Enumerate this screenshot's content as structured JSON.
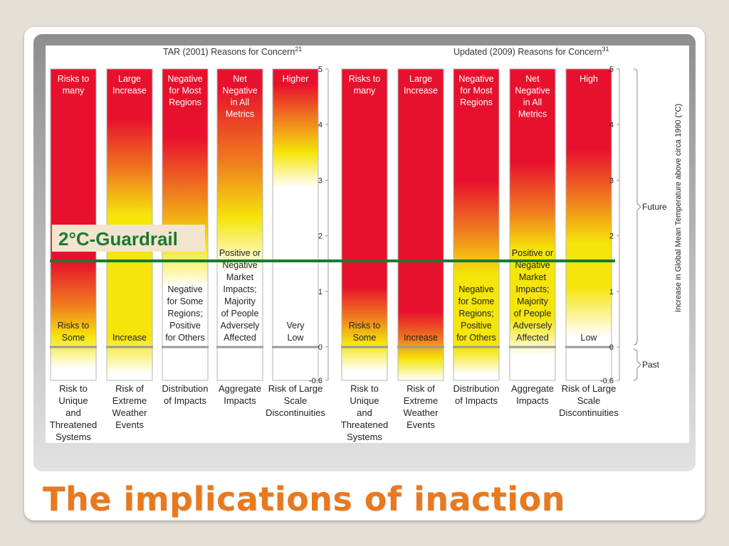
{
  "slide_title": "The implications of inaction",
  "panels": [
    {
      "title": "TAR (2001) Reasons for Concern",
      "title_sup": "21",
      "columns": [
        {
          "top": [
            "Risks to",
            "many"
          ],
          "mid": [],
          "bottom": [
            "Risks to",
            "Some"
          ],
          "caption": [
            "Risk to",
            "Unique",
            "and",
            "Threatened",
            "Systems"
          ]
        },
        {
          "top": [
            "Large",
            "Increase"
          ],
          "mid": [],
          "bottom": [
            "Increase"
          ],
          "caption": [
            "Risk of",
            "Extreme",
            "Weather",
            "Events"
          ]
        },
        {
          "top": [
            "Negative",
            "for Most",
            "Regions"
          ],
          "mid": [],
          "bottom": [
            "Negative",
            "for Some",
            "Regions;",
            "Positive",
            "for Others"
          ],
          "caption": [
            "Distribution",
            "of Impacts"
          ]
        },
        {
          "top": [
            "Net",
            "Negative",
            "in All",
            "Metrics"
          ],
          "mid": [],
          "bottom": [
            "Positive or",
            "Negative",
            "Market",
            "Impacts;",
            "Majority",
            "of People",
            "Adversely",
            "Affected"
          ],
          "caption": [
            "Aggregate",
            "Impacts"
          ]
        },
        {
          "top": [
            "Higher"
          ],
          "mid": [],
          "bottom": [
            "Very",
            "Low"
          ],
          "caption": [
            "Risk of Large",
            "Scale",
            "Discontinuities"
          ]
        }
      ]
    },
    {
      "title": "Updated (2009) Reasons for Concern",
      "title_sup": "31",
      "columns": [
        {
          "top": [
            "Risks to",
            "many"
          ],
          "mid": [],
          "bottom": [
            "Risks to",
            "Some"
          ],
          "caption": [
            "Risk to",
            "Unique",
            "and",
            "Threatened",
            "Systems"
          ]
        },
        {
          "top": [
            "Large",
            "Increase"
          ],
          "mid": [],
          "bottom": [
            "Increase"
          ],
          "caption": [
            "Risk of",
            "Extreme",
            "Weather",
            "Events"
          ]
        },
        {
          "top": [
            "Negative",
            "for Most",
            "Regions"
          ],
          "mid": [],
          "bottom": [
            "Negative",
            "for Some",
            "Regions;",
            "Positive",
            "for Others"
          ],
          "caption": [
            "Distribution",
            "of Impacts"
          ]
        },
        {
          "top": [
            "Net",
            "Negative",
            "in All",
            "Metrics"
          ],
          "mid": [],
          "bottom": [
            "Positive or",
            "Negative",
            "Market",
            "Impacts;",
            "Majority",
            "of People",
            "Adversely",
            "Affected"
          ],
          "caption": [
            "Aggregate",
            "Impacts"
          ]
        },
        {
          "top": [
            "High"
          ],
          "mid": [],
          "bottom": [
            "Low"
          ],
          "caption": [
            "Risk of Large",
            "Scale",
            "Discontinuities"
          ]
        }
      ]
    }
  ],
  "axis": {
    "ticks": [
      5,
      4,
      3,
      2,
      1,
      0,
      -0.6
    ],
    "tick_labels": [
      "5",
      "4",
      "3",
      "2",
      "1",
      "0",
      "-0.6"
    ],
    "label": "Increase in Global Mean Temperature above circa 1990 (°C)",
    "future_label": "Future",
    "past_label": "Past",
    "range": [
      -0.6,
      5
    ]
  },
  "guardrail": {
    "label": "2°C-Guardrail",
    "value": 1.4,
    "color": "#1a7a2e"
  },
  "colors": {
    "red": "#e8112d",
    "orange": "#f07d1e",
    "yellow": "#f5e50a",
    "title": "#e8791e"
  }
}
